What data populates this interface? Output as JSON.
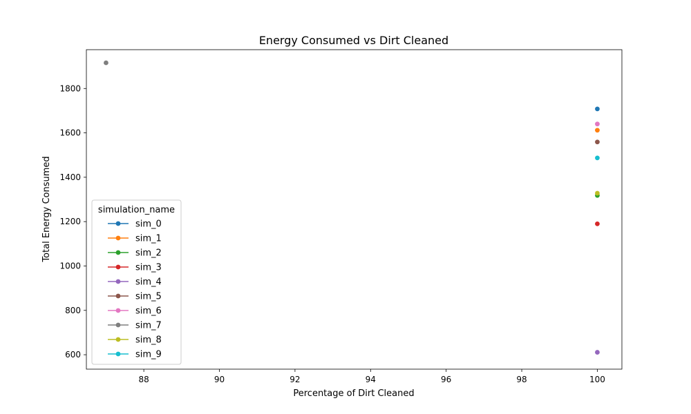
{
  "chart_data": {
    "type": "scatter",
    "title": "Energy Consumed vs Dirt Cleaned",
    "xlabel": "Percentage of Dirt Cleaned",
    "ylabel": "Total Energy Consumed",
    "xlim": [
      86.48,
      100.65
    ],
    "ylim": [
      535,
      1975
    ],
    "xticks": [
      "88",
      "90",
      "92",
      "94",
      "96",
      "98",
      "100"
    ],
    "yticks": [
      "600",
      "800",
      "1000",
      "1200",
      "1400",
      "1600",
      "1800"
    ],
    "grid": false,
    "legend": {
      "title": "simulation_name",
      "placement": "lower-left"
    },
    "series": [
      {
        "name": "sim_0",
        "color": "#1f77b4",
        "x": [
          100
        ],
        "y": [
          1708
        ]
      },
      {
        "name": "sim_1",
        "color": "#ff7f0e",
        "x": [
          100
        ],
        "y": [
          1612
        ]
      },
      {
        "name": "sim_2",
        "color": "#2ca02c",
        "x": [
          100
        ],
        "y": [
          1318
        ]
      },
      {
        "name": "sim_3",
        "color": "#d62728",
        "x": [
          100
        ],
        "y": [
          1190
        ]
      },
      {
        "name": "sim_4",
        "color": "#9467bd",
        "x": [
          100
        ],
        "y": [
          611
        ]
      },
      {
        "name": "sim_5",
        "color": "#8c564b",
        "x": [
          100
        ],
        "y": [
          1559
        ]
      },
      {
        "name": "sim_6",
        "color": "#e377c2",
        "x": [
          100
        ],
        "y": [
          1640
        ]
      },
      {
        "name": "sim_7",
        "color": "#7f7f7f",
        "x": [
          87
        ],
        "y": [
          1916
        ]
      },
      {
        "name": "sim_8",
        "color": "#bcbd22",
        "x": [
          100
        ],
        "y": [
          1328
        ]
      },
      {
        "name": "sim_9",
        "color": "#17becf",
        "x": [
          100
        ],
        "y": [
          1487
        ]
      }
    ]
  }
}
